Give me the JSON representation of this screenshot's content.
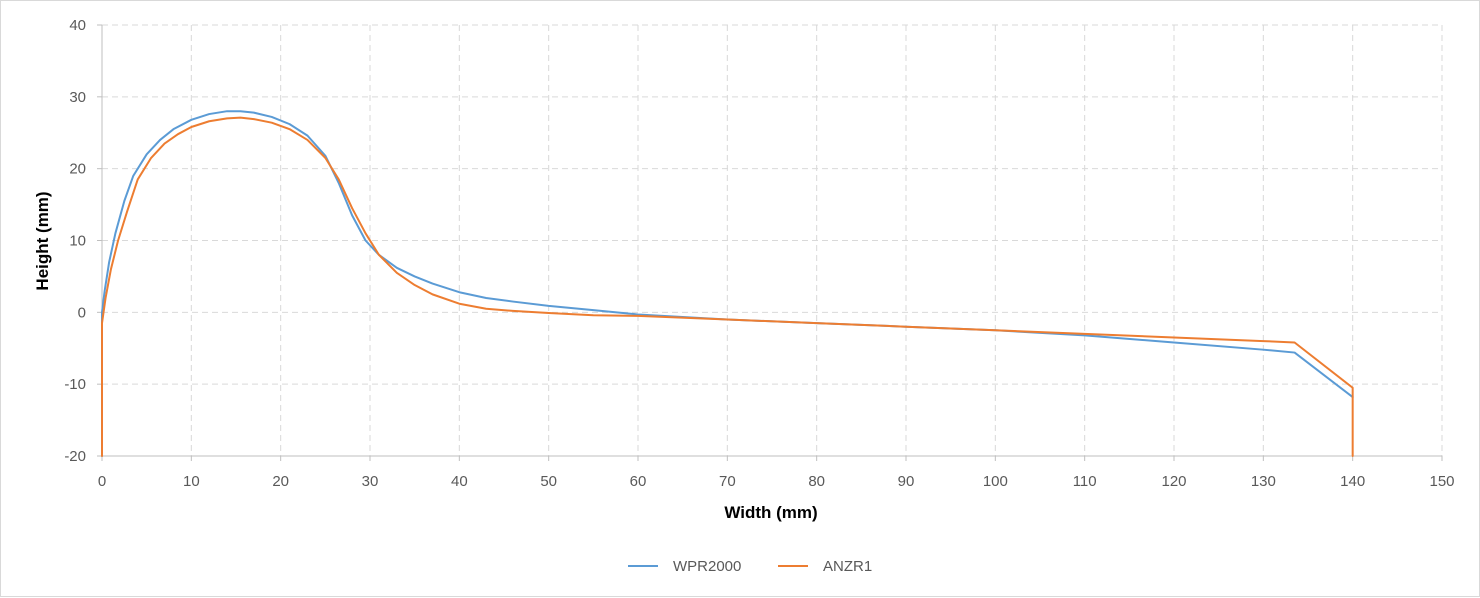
{
  "chart_data": {
    "type": "line",
    "xlabel": "Width (mm)",
    "ylabel": "Height (mm)",
    "xlim": [
      0,
      150
    ],
    "ylim": [
      -20,
      40
    ],
    "xticks": [
      0,
      10,
      20,
      30,
      40,
      50,
      60,
      70,
      80,
      90,
      100,
      110,
      120,
      130,
      140,
      150
    ],
    "yticks": [
      -20,
      -10,
      0,
      10,
      20,
      30,
      40
    ],
    "grid": true,
    "grid_style": "dashed",
    "legend_position": "bottom",
    "series": [
      {
        "name": "WPR2000",
        "color": "#5B9BD5",
        "points": [
          [
            0,
            -20
          ],
          [
            0,
            0
          ],
          [
            0.3,
            3
          ],
          [
            0.8,
            7
          ],
          [
            1.5,
            11
          ],
          [
            2.5,
            15.5
          ],
          [
            3.5,
            19
          ],
          [
            5,
            22
          ],
          [
            6.5,
            24
          ],
          [
            8,
            25.5
          ],
          [
            10,
            26.8
          ],
          [
            12,
            27.6
          ],
          [
            14,
            28
          ],
          [
            15.5,
            28
          ],
          [
            17,
            27.8
          ],
          [
            19,
            27.2
          ],
          [
            21,
            26.2
          ],
          [
            23,
            24.6
          ],
          [
            25,
            21.8
          ],
          [
            26.5,
            18
          ],
          [
            28,
            13.5
          ],
          [
            29.5,
            10
          ],
          [
            31,
            8
          ],
          [
            33,
            6.2
          ],
          [
            35,
            5
          ],
          [
            37,
            4
          ],
          [
            40,
            2.8
          ],
          [
            43,
            2
          ],
          [
            46,
            1.5
          ],
          [
            50,
            0.9
          ],
          [
            55,
            0.3
          ],
          [
            60,
            -0.3
          ],
          [
            70,
            -1
          ],
          [
            80,
            -1.5
          ],
          [
            90,
            -2
          ],
          [
            100,
            -2.5
          ],
          [
            110,
            -3.2
          ],
          [
            120,
            -4.2
          ],
          [
            130,
            -5.2
          ],
          [
            133.5,
            -5.6
          ],
          [
            140,
            -11.8
          ]
        ]
      },
      {
        "name": "ANZR1",
        "color": "#ED7D31",
        "points": [
          [
            0,
            -20
          ],
          [
            0,
            -1.5
          ],
          [
            0.4,
            2
          ],
          [
            1,
            6
          ],
          [
            1.8,
            10
          ],
          [
            2.8,
            14
          ],
          [
            4,
            18.5
          ],
          [
            5.5,
            21.5
          ],
          [
            7,
            23.5
          ],
          [
            8.5,
            24.8
          ],
          [
            10,
            25.8
          ],
          [
            12,
            26.6
          ],
          [
            14,
            27
          ],
          [
            15.5,
            27.1
          ],
          [
            17,
            26.9
          ],
          [
            19,
            26.4
          ],
          [
            21,
            25.5
          ],
          [
            23,
            24
          ],
          [
            25,
            21.5
          ],
          [
            26.5,
            18.5
          ],
          [
            28,
            14.5
          ],
          [
            29.5,
            11
          ],
          [
            31,
            8
          ],
          [
            33,
            5.5
          ],
          [
            35,
            3.8
          ],
          [
            37,
            2.5
          ],
          [
            40,
            1.2
          ],
          [
            43,
            0.5
          ],
          [
            46,
            0.2
          ],
          [
            50,
            -0.1
          ],
          [
            55,
            -0.4
          ],
          [
            60,
            -0.5
          ],
          [
            70,
            -1
          ],
          [
            80,
            -1.5
          ],
          [
            90,
            -2
          ],
          [
            100,
            -2.5
          ],
          [
            110,
            -3
          ],
          [
            120,
            -3.5
          ],
          [
            130,
            -4
          ],
          [
            133.5,
            -4.2
          ],
          [
            140,
            -10.5
          ],
          [
            140,
            -20
          ]
        ]
      }
    ]
  }
}
